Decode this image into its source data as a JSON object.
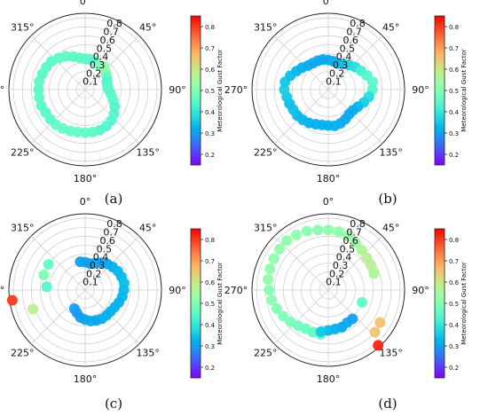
{
  "figure": {
    "colorbar_label": "Meteorological Gust Factor",
    "colorbar_range": [
      0.15,
      0.85
    ],
    "colorbar_ticks": [
      "0.2",
      "0.3",
      "0.4",
      "0.5",
      "0.6",
      "0.7",
      "0.8"
    ],
    "angle_labels": [
      "0°",
      "45°",
      "90°",
      "135°",
      "180°",
      "225°",
      "270°",
      "315°"
    ],
    "radial_tick_labels": [
      "0.1",
      "0.2",
      "0.3",
      "0.4",
      "0.5",
      "0.6",
      "0.7",
      "0.8"
    ]
  },
  "panels": [
    {
      "label": "(a)"
    },
    {
      "label": "(b)"
    },
    {
      "label": "(c)"
    },
    {
      "label": "(d)"
    }
  ],
  "chart_data": [
    {
      "type": "scatter",
      "panel": "(a)",
      "projection": "polar",
      "theta_labels": [
        "0°",
        "45°",
        "90°",
        "135°",
        "180°",
        "225°",
        "270°",
        "315°"
      ],
      "r_ticks": [
        0.1,
        0.2,
        0.3,
        0.4,
        0.5,
        0.6,
        0.7,
        0.8
      ],
      "r_lim": [
        0,
        0.85
      ],
      "colorbar_label": "Meteorological Gust Factor",
      "c_range": [
        0.15,
        0.85
      ],
      "series": [
        {
          "theta_deg": [
            0,
            10,
            20,
            30,
            40,
            50,
            60,
            70,
            80,
            90,
            100,
            110,
            120,
            130,
            140,
            150,
            160,
            170,
            180,
            190,
            200,
            210,
            220,
            230,
            240,
            250,
            260,
            270,
            280,
            290,
            300,
            310,
            320,
            330,
            340,
            350
          ],
          "r": [
            0.34,
            0.34,
            0.33,
            0.31,
            0.33,
            0.3,
            0.28,
            0.26,
            0.25,
            0.26,
            0.29,
            0.33,
            0.38,
            0.42,
            0.45,
            0.47,
            0.48,
            0.48,
            0.48,
            0.48,
            0.49,
            0.5,
            0.51,
            0.51,
            0.51,
            0.52,
            0.52,
            0.52,
            0.52,
            0.51,
            0.5,
            0.49,
            0.46,
            0.43,
            0.39,
            0.36
          ],
          "c": [
            0.45,
            0.45,
            0.44,
            0.5,
            0.52,
            0.52,
            0.46,
            0.44,
            0.44,
            0.45,
            0.45,
            0.45,
            0.44,
            0.44,
            0.44,
            0.44,
            0.44,
            0.45,
            0.46,
            0.46,
            0.46,
            0.46,
            0.46,
            0.45,
            0.45,
            0.45,
            0.45,
            0.45,
            0.45,
            0.45,
            0.45,
            0.45,
            0.45,
            0.45,
            0.45,
            0.45
          ]
        }
      ]
    },
    {
      "type": "scatter",
      "panel": "(b)",
      "projection": "polar",
      "theta_labels": [
        "0°",
        "45°",
        "90°",
        "135°",
        "180°",
        "225°",
        "270°",
        "315°"
      ],
      "r_ticks": [
        0.1,
        0.2,
        0.3,
        0.4,
        0.5,
        0.6,
        0.7,
        0.8
      ],
      "r_lim": [
        0,
        0.85
      ],
      "colorbar_label": "Meteorological Gust Factor",
      "c_range": [
        0.15,
        0.85
      ],
      "series": [
        {
          "theta_deg": [
            0,
            10,
            20,
            30,
            40,
            50,
            60,
            70,
            80,
            90,
            100,
            110,
            120,
            130,
            140,
            150,
            160,
            170,
            180,
            190,
            200,
            210,
            220,
            230,
            240,
            250,
            260,
            270,
            280,
            290,
            300,
            310,
            320,
            330,
            340,
            350
          ],
          "r": [
            0.33,
            0.32,
            0.31,
            0.33,
            0.36,
            0.39,
            0.42,
            0.46,
            0.5,
            0.49,
            0.46,
            0.42,
            0.38,
            0.36,
            0.36,
            0.38,
            0.4,
            0.41,
            0.4,
            0.4,
            0.41,
            0.43,
            0.44,
            0.45,
            0.45,
            0.46,
            0.47,
            0.49,
            0.49,
            0.45,
            0.41,
            0.38,
            0.35,
            0.34,
            0.34,
            0.34
          ],
          "c": [
            0.32,
            0.32,
            0.33,
            0.34,
            0.37,
            0.38,
            0.42,
            0.44,
            0.45,
            0.44,
            0.38,
            0.36,
            0.33,
            0.32,
            0.31,
            0.31,
            0.31,
            0.32,
            0.32,
            0.32,
            0.32,
            0.32,
            0.33,
            0.33,
            0.34,
            0.34,
            0.35,
            0.36,
            0.35,
            0.34,
            0.33,
            0.32,
            0.31,
            0.31,
            0.31,
            0.31
          ]
        }
      ]
    },
    {
      "type": "scatter",
      "panel": "(c)",
      "projection": "polar",
      "theta_labels": [
        "0°",
        "45°",
        "90°",
        "135°",
        "180°",
        "225°",
        "270°",
        "315°"
      ],
      "r_ticks": [
        0.1,
        0.2,
        0.3,
        0.4,
        0.5,
        0.6,
        0.7,
        0.8
      ],
      "r_lim": [
        0,
        0.85
      ],
      "colorbar_label": "Meteorological Gust Factor",
      "c_range": [
        0.15,
        0.85
      ],
      "series": [
        {
          "theta_deg": [
            -10,
            0,
            10,
            20,
            30,
            40,
            50,
            60,
            70,
            80,
            90,
            100,
            110,
            120,
            130,
            140,
            150,
            160,
            170,
            180,
            190,
            200,
            210
          ],
          "r": [
            0.32,
            0.31,
            0.3,
            0.32,
            0.35,
            0.38,
            0.4,
            0.42,
            0.43,
            0.44,
            0.43,
            0.42,
            0.4,
            0.38,
            0.37,
            0.37,
            0.37,
            0.36,
            0.35,
            0.33,
            0.31,
            0.27,
            0.24
          ],
          "c": [
            0.3,
            0.3,
            0.3,
            0.3,
            0.3,
            0.31,
            0.32,
            0.33,
            0.33,
            0.34,
            0.33,
            0.33,
            0.32,
            0.32,
            0.32,
            0.32,
            0.32,
            0.31,
            0.31,
            0.31,
            0.3,
            0.3,
            0.3
          ]
        },
        {
          "theta_deg": [
            305,
            290,
            275,
            250,
            262
          ],
          "r": [
            0.5,
            0.49,
            0.43,
            0.62,
            0.82
          ],
          "c": [
            0.46,
            0.5,
            0.44,
            0.58,
            0.8
          ]
        }
      ]
    },
    {
      "type": "scatter",
      "panel": "(d)",
      "projection": "polar",
      "theta_labels": [
        "0°",
        "45°",
        "90°",
        "135°",
        "180°",
        "225°",
        "270°",
        "315°"
      ],
      "r_ticks": [
        0.1,
        0.2,
        0.3,
        0.4,
        0.5,
        0.6,
        0.7,
        0.8
      ],
      "r_lim": [
        0,
        0.85
      ],
      "colorbar_label": "Meteorological Gust Factor",
      "c_range": [
        0.15,
        0.85
      ],
      "series": [
        {
          "theta_deg": [
            190,
            200,
            210,
            220,
            230,
            240,
            250,
            260,
            270,
            280,
            290,
            300,
            310,
            320,
            330,
            340,
            350,
            0,
            10,
            20,
            30,
            40,
            50,
            60
          ],
          "r": [
            0.5,
            0.5,
            0.5,
            0.52,
            0.55,
            0.58,
            0.61,
            0.64,
            0.66,
            0.68,
            0.69,
            0.7,
            0.71,
            0.72,
            0.71,
            0.7,
            0.68,
            0.67,
            0.66,
            0.64,
            0.61,
            0.58,
            0.56,
            0.55
          ],
          "c": [
            0.45,
            0.46,
            0.47,
            0.48,
            0.49,
            0.5,
            0.5,
            0.51,
            0.51,
            0.52,
            0.52,
            0.52,
            0.52,
            0.52,
            0.52,
            0.51,
            0.51,
            0.52,
            0.52,
            0.53,
            0.53,
            0.56,
            0.58,
            0.58
          ]
        },
        {
          "theta_deg": [
            140,
            150,
            160,
            170,
            180,
            190
          ],
          "r": [
            0.42,
            0.42,
            0.44,
            0.44,
            0.45,
            0.47
          ],
          "c": [
            0.3,
            0.31,
            0.31,
            0.32,
            0.33,
            0.35
          ]
        },
        {
          "theta_deg": [
            70,
            110
          ],
          "r": [
            0.54,
            0.4
          ],
          "c": [
            0.56,
            0.46
          ]
        },
        {
          "theta_deg": [
            122,
            132,
            138
          ],
          "r": [
            0.68,
            0.7,
            0.83
          ],
          "c": [
            0.66,
            0.65,
            0.82
          ]
        }
      ]
    }
  ]
}
